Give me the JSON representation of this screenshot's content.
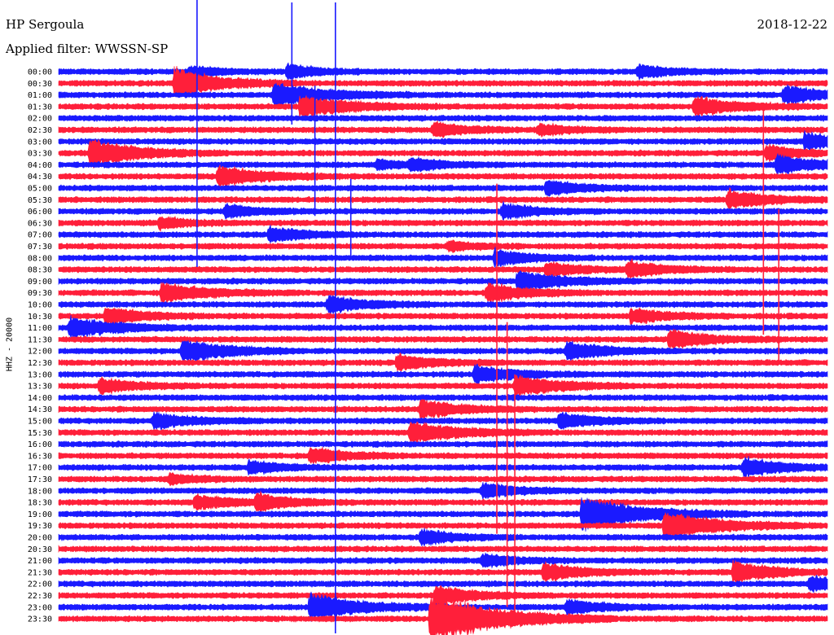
{
  "header": {
    "station": "HP Sergoula",
    "date": "2018-12-22",
    "filter": "Applied filter: WWSSN-SP"
  },
  "colors": {
    "trace_a": "#1a1aff",
    "trace_b": "#ff1f3a",
    "background": "#ffffff"
  },
  "chart_data": {
    "type": "line",
    "title": "HP Sergoula",
    "ylabel": "HHZ - 20000",
    "row_labels": [
      "00:00",
      "00:30",
      "01:00",
      "01:30",
      "02:00",
      "02:30",
      "03:00",
      "03:30",
      "04:00",
      "04:30",
      "05:00",
      "05:30",
      "06:00",
      "06:30",
      "07:00",
      "07:30",
      "08:00",
      "08:30",
      "09:00",
      "09:30",
      "10:00",
      "10:30",
      "11:00",
      "11:30",
      "12:00",
      "12:30",
      "13:00",
      "13:30",
      "14:00",
      "14:30",
      "15:00",
      "15:30",
      "16:00",
      "16:30",
      "17:00",
      "17:30",
      "18:00",
      "18:30",
      "19:00",
      "19:30",
      "20:00",
      "20:30",
      "21:00",
      "21:30",
      "22:00",
      "22:30",
      "23:00",
      "23:30"
    ],
    "row_colors": [
      "blue",
      "red"
    ],
    "minutes_per_row": 30,
    "events": [
      {
        "row": 0,
        "minute": 5.1,
        "amp": 6,
        "dur": 1.2
      },
      {
        "row": 0,
        "minute": 8.9,
        "amp": 10,
        "dur": 1.0
      },
      {
        "row": 0,
        "minute": 22.6,
        "amp": 8,
        "dur": 1.1
      },
      {
        "row": 1,
        "minute": 4.5,
        "amp": 20,
        "dur": 1.6
      },
      {
        "row": 2,
        "minute": 8.4,
        "amp": 16,
        "dur": 1.8
      },
      {
        "row": 2,
        "minute": 28.3,
        "amp": 12,
        "dur": 1.5
      },
      {
        "row": 3,
        "minute": 9.4,
        "amp": 14,
        "dur": 1.8
      },
      {
        "row": 3,
        "minute": 24.8,
        "amp": 12,
        "dur": 1.6
      },
      {
        "row": 5,
        "minute": 14.6,
        "amp": 9,
        "dur": 1.3
      },
      {
        "row": 5,
        "minute": 18.7,
        "amp": 7,
        "dur": 1.3
      },
      {
        "row": 6,
        "minute": 29.1,
        "amp": 12,
        "dur": 1.4
      },
      {
        "row": 7,
        "minute": 1.2,
        "amp": 18,
        "dur": 1.8
      },
      {
        "row": 7,
        "minute": 27.6,
        "amp": 10,
        "dur": 1.2
      },
      {
        "row": 8,
        "minute": 12.4,
        "amp": 6,
        "dur": 1.0
      },
      {
        "row": 8,
        "minute": 13.7,
        "amp": 8,
        "dur": 1.2
      },
      {
        "row": 8,
        "minute": 28.0,
        "amp": 12,
        "dur": 1.5
      },
      {
        "row": 9,
        "minute": 6.2,
        "amp": 14,
        "dur": 1.6
      },
      {
        "row": 10,
        "minute": 19.0,
        "amp": 10,
        "dur": 1.3
      },
      {
        "row": 11,
        "minute": 26.1,
        "amp": 12,
        "dur": 1.5
      },
      {
        "row": 12,
        "minute": 6.5,
        "amp": 9,
        "dur": 1.2
      },
      {
        "row": 12,
        "minute": 17.3,
        "amp": 10,
        "dur": 1.3
      },
      {
        "row": 13,
        "minute": 3.9,
        "amp": 8,
        "dur": 1.1
      },
      {
        "row": 14,
        "minute": 8.2,
        "amp": 10,
        "dur": 1.3
      },
      {
        "row": 15,
        "minute": 15.2,
        "amp": 6,
        "dur": 1.0
      },
      {
        "row": 16,
        "minute": 17.0,
        "amp": 10,
        "dur": 1.3
      },
      {
        "row": 17,
        "minute": 19.0,
        "amp": 9,
        "dur": 1.4
      },
      {
        "row": 17,
        "minute": 22.2,
        "amp": 10,
        "dur": 1.4
      },
      {
        "row": 18,
        "minute": 17.9,
        "amp": 14,
        "dur": 1.6
      },
      {
        "row": 19,
        "minute": 4.0,
        "amp": 12,
        "dur": 1.8
      },
      {
        "row": 19,
        "minute": 16.7,
        "amp": 12,
        "dur": 1.5
      },
      {
        "row": 20,
        "minute": 10.5,
        "amp": 11,
        "dur": 1.4
      },
      {
        "row": 21,
        "minute": 1.8,
        "amp": 12,
        "dur": 1.4
      },
      {
        "row": 21,
        "minute": 22.3,
        "amp": 10,
        "dur": 1.3
      },
      {
        "row": 22,
        "minute": 0.4,
        "amp": 14,
        "dur": 1.7
      },
      {
        "row": 23,
        "minute": 23.8,
        "amp": 12,
        "dur": 1.5
      },
      {
        "row": 24,
        "minute": 4.8,
        "amp": 16,
        "dur": 1.6
      },
      {
        "row": 24,
        "minute": 19.8,
        "amp": 12,
        "dur": 1.5
      },
      {
        "row": 25,
        "minute": 13.2,
        "amp": 10,
        "dur": 1.4
      },
      {
        "row": 26,
        "minute": 16.2,
        "amp": 12,
        "dur": 1.5
      },
      {
        "row": 27,
        "minute": 1.6,
        "amp": 10,
        "dur": 1.3
      },
      {
        "row": 27,
        "minute": 17.8,
        "amp": 14,
        "dur": 1.6
      },
      {
        "row": 29,
        "minute": 14.1,
        "amp": 12,
        "dur": 1.5
      },
      {
        "row": 30,
        "minute": 3.7,
        "amp": 10,
        "dur": 1.4
      },
      {
        "row": 30,
        "minute": 19.5,
        "amp": 10,
        "dur": 1.4
      },
      {
        "row": 31,
        "minute": 13.7,
        "amp": 14,
        "dur": 1.8
      },
      {
        "row": 33,
        "minute": 9.8,
        "amp": 10,
        "dur": 1.4
      },
      {
        "row": 34,
        "minute": 7.4,
        "amp": 8,
        "dur": 1.2
      },
      {
        "row": 34,
        "minute": 26.7,
        "amp": 12,
        "dur": 1.5
      },
      {
        "row": 35,
        "minute": 4.3,
        "amp": 6,
        "dur": 1.1
      },
      {
        "row": 36,
        "minute": 16.5,
        "amp": 10,
        "dur": 1.3
      },
      {
        "row": 37,
        "minute": 5.3,
        "amp": 10,
        "dur": 1.3
      },
      {
        "row": 37,
        "minute": 7.7,
        "amp": 10,
        "dur": 1.3
      },
      {
        "row": 38,
        "minute": 20.4,
        "amp": 22,
        "dur": 2.2
      },
      {
        "row": 39,
        "minute": 23.6,
        "amp": 18,
        "dur": 2.0
      },
      {
        "row": 40,
        "minute": 14.1,
        "amp": 10,
        "dur": 1.3
      },
      {
        "row": 42,
        "minute": 16.5,
        "amp": 8,
        "dur": 1.2
      },
      {
        "row": 43,
        "minute": 18.9,
        "amp": 12,
        "dur": 1.4
      },
      {
        "row": 43,
        "minute": 26.3,
        "amp": 14,
        "dur": 1.5
      },
      {
        "row": 44,
        "minute": 29.3,
        "amp": 10,
        "dur": 1.2
      },
      {
        "row": 45,
        "minute": 14.7,
        "amp": 12,
        "dur": 1.5
      },
      {
        "row": 46,
        "minute": 9.8,
        "amp": 18,
        "dur": 1.8
      },
      {
        "row": 46,
        "minute": 19.8,
        "amp": 10,
        "dur": 1.3
      },
      {
        "row": 47,
        "minute": 14.5,
        "amp": 34,
        "dur": 2.4
      }
    ],
    "spikes": [
      {
        "row": 0,
        "minute": 5.4,
        "up": 95,
        "down": 240,
        "color": "blue"
      },
      {
        "row": 0,
        "minute": 9.1,
        "up": 85,
        "down": 65,
        "color": "blue"
      },
      {
        "row": 0,
        "minute": 10.8,
        "up": 85,
        "down": 690,
        "color": "blue"
      },
      {
        "row": 4,
        "minute": 10.0,
        "up": 40,
        "down": 120,
        "color": "blue"
      },
      {
        "row": 12,
        "minute": 11.4,
        "up": 40,
        "down": 60,
        "color": "blue"
      },
      {
        "row": 16,
        "minute": 28.1,
        "up": 60,
        "down": 130,
        "color": "red"
      },
      {
        "row": 17,
        "minute": 27.5,
        "up": 200,
        "down": 80,
        "color": "red"
      },
      {
        "row": 32,
        "minute": 17.1,
        "up": 320,
        "down": 110,
        "color": "red"
      },
      {
        "row": 32,
        "minute": 17.5,
        "up": 150,
        "down": 200,
        "color": "red"
      },
      {
        "row": 33,
        "minute": 17.8,
        "up": 100,
        "down": 200,
        "color": "red"
      }
    ]
  }
}
